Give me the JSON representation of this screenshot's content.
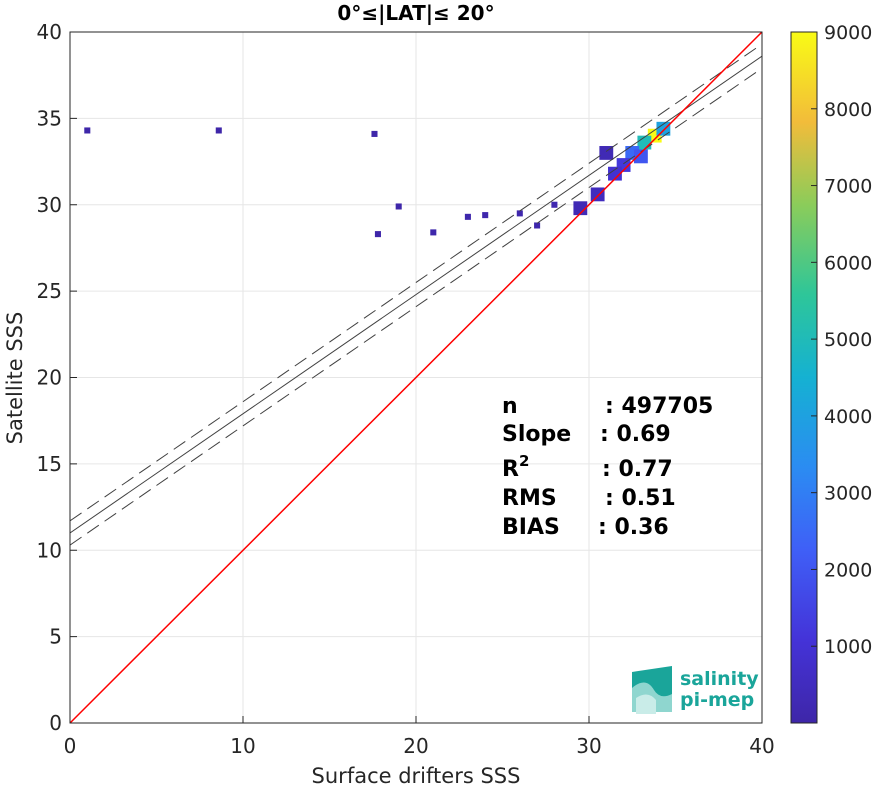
{
  "chart_data": {
    "type": "heatmap",
    "title": "0°≤|LAT|≤ 20°",
    "xlabel": "Surface drifters SSS",
    "ylabel": "Satellite SSS",
    "xlim": [
      0,
      40
    ],
    "ylim": [
      0,
      40
    ],
    "xticks": [
      "0",
      "10",
      "20",
      "30",
      "40"
    ],
    "yticks": [
      "0",
      "5",
      "10",
      "15",
      "20",
      "25",
      "30",
      "35",
      "40"
    ],
    "grid": true,
    "colorbar": {
      "colormap": "parula",
      "range": [
        0,
        9000
      ],
      "ticks": [
        "1000",
        "2000",
        "3000",
        "4000",
        "5000",
        "6000",
        "7000",
        "8000",
        "9000"
      ]
    },
    "reference_line": {
      "name": "1:1",
      "color": "#ff0000",
      "slope": 1,
      "intercept": 0
    },
    "fit_line": {
      "slope": 0.69,
      "intercept": 11.0,
      "color": "#404040"
    },
    "fit_bounds": [
      {
        "slope": 0.69,
        "intercept": 11.7,
        "style": "dashed"
      },
      {
        "slope": 0.69,
        "intercept": 10.3,
        "style": "dashed"
      }
    ],
    "density_clusters": [
      {
        "x": 33.8,
        "y": 34.0,
        "count": 9000
      },
      {
        "x": 33.2,
        "y": 33.6,
        "count": 5000
      },
      {
        "x": 34.3,
        "y": 34.4,
        "count": 4000
      },
      {
        "x": 32.5,
        "y": 33.0,
        "count": 2500
      },
      {
        "x": 33.0,
        "y": 32.8,
        "count": 2000
      },
      {
        "x": 32.0,
        "y": 32.3,
        "count": 1200
      },
      {
        "x": 31.5,
        "y": 31.8,
        "count": 900
      },
      {
        "x": 30.5,
        "y": 30.6,
        "count": 500
      },
      {
        "x": 31.0,
        "y": 33.0,
        "count": 300
      },
      {
        "x": 29.5,
        "y": 29.8,
        "count": 300
      },
      {
        "x": 28.0,
        "y": 30.0,
        "count": 150
      },
      {
        "x": 26.0,
        "y": 29.5,
        "count": 120
      },
      {
        "x": 24.0,
        "y": 29.4,
        "count": 100
      },
      {
        "x": 23.0,
        "y": 29.3,
        "count": 80
      },
      {
        "x": 27.0,
        "y": 28.8,
        "count": 80
      },
      {
        "x": 21.0,
        "y": 28.4,
        "count": 60
      },
      {
        "x": 19.0,
        "y": 29.9,
        "count": 30
      },
      {
        "x": 17.8,
        "y": 28.3,
        "count": 30
      },
      {
        "x": 1.0,
        "y": 34.3,
        "count": 20
      },
      {
        "x": 8.6,
        "y": 34.3,
        "count": 20
      },
      {
        "x": 17.6,
        "y": 34.1,
        "count": 20
      }
    ],
    "statistics": [
      {
        "label": "n",
        "value": ": 497705"
      },
      {
        "label": "Slope",
        "value": ": 0.69"
      },
      {
        "label": "R",
        "sup": "2",
        "value": ": 0.77"
      },
      {
        "label": "RMS",
        "value": ": 0.51"
      },
      {
        "label": "BIAS",
        "value": ": 0.36"
      }
    ]
  },
  "logo": {
    "line1": "salinity",
    "line2": "pi-mep"
  }
}
